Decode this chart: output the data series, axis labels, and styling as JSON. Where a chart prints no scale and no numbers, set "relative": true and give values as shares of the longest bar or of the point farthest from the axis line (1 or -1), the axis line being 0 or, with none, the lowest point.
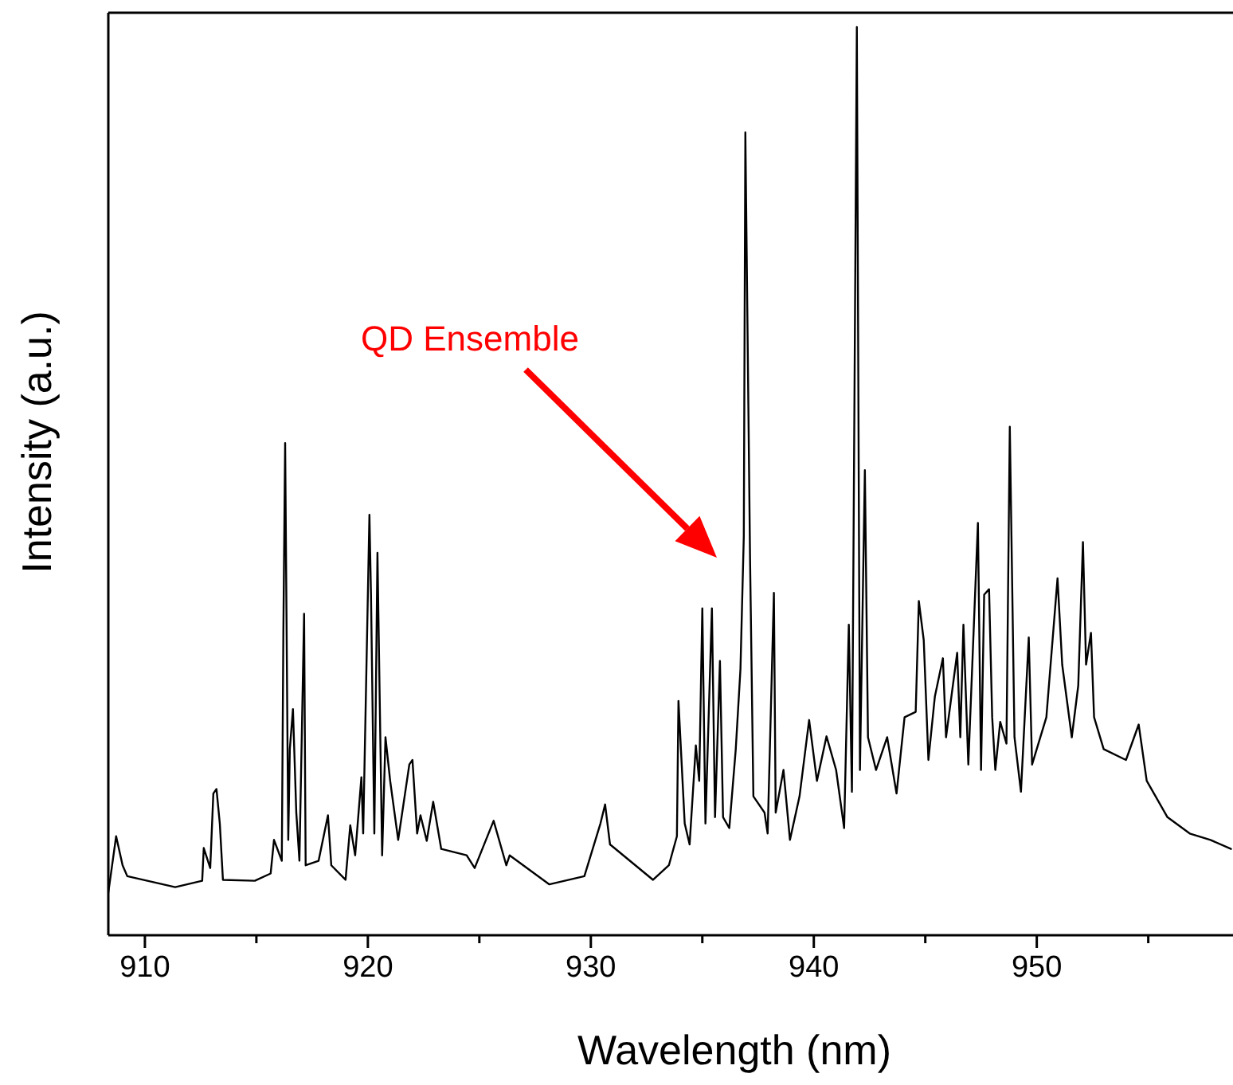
{
  "chart_data": {
    "type": "line",
    "relative": true,
    "xlabel": "Wavelength (nm)",
    "ylabel": "Intensity (a.u.)",
    "xlim": [
      908.36,
      958.8
    ],
    "xticks": [
      910,
      {
        "value": 915,
        "label": null
      },
      920,
      {
        "value": 925,
        "label": null
      },
      930,
      {
        "value": 935,
        "label": null
      },
      940,
      {
        "value": 945,
        "label": null
      },
      950,
      {
        "value": 955,
        "label": null
      }
    ],
    "annotations": [
      "QD Ensemble"
    ],
    "series": [
      {
        "color": "#000000",
        "x": [
          908.36,
          908.71,
          909.0,
          909.21,
          911.36,
          912.57,
          912.64,
          912.93,
          913.07,
          913.21,
          913.36,
          913.5,
          914.93,
          915.64,
          915.79,
          916.14,
          916.21,
          916.29,
          916.43,
          916.5,
          916.64,
          916.79,
          916.93,
          917.14,
          917.21,
          917.79,
          918.21,
          918.36,
          919.0,
          919.21,
          919.43,
          919.71,
          919.79,
          920.07,
          920.14,
          920.29,
          920.43,
          920.64,
          920.79,
          921.0,
          921.36,
          921.86,
          922.0,
          922.21,
          922.36,
          922.64,
          922.93,
          923.29,
          924.43,
          924.79,
          925.64,
          926.21,
          926.36,
          928.14,
          929.71,
          930.43,
          930.64,
          930.86,
          932.79,
          933.5,
          933.86,
          933.93,
          934.21,
          934.43,
          934.71,
          934.86,
          935.0,
          935.14,
          935.43,
          935.57,
          935.79,
          935.93,
          936.21,
          936.5,
          936.71,
          936.86,
          936.93,
          937.14,
          937.29,
          937.79,
          937.93,
          938.21,
          938.29,
          938.64,
          938.93,
          939.36,
          939.79,
          940.14,
          940.57,
          941.0,
          941.36,
          941.57,
          941.71,
          941.93,
          942.07,
          942.29,
          942.43,
          942.79,
          943.29,
          943.71,
          944.07,
          944.57,
          944.71,
          944.93,
          945.14,
          945.43,
          945.79,
          945.93,
          946.43,
          946.57,
          946.71,
          946.93,
          947.36,
          947.5,
          947.64,
          947.86,
          948.0,
          948.14,
          948.36,
          948.64,
          948.79,
          949.0,
          949.29,
          949.64,
          949.79,
          950.43,
          950.93,
          951.14,
          951.57,
          951.86,
          952.07,
          952.21,
          952.43,
          952.57,
          953.0,
          954.0,
          954.57,
          954.93,
          955.86,
          956.86,
          957.79,
          958.71
        ],
        "values": [
          0.047,
          0.109,
          0.077,
          0.065,
          0.053,
          0.06,
          0.096,
          0.074,
          0.156,
          0.161,
          0.123,
          0.061,
          0.06,
          0.068,
          0.105,
          0.082,
          0.333,
          0.542,
          0.105,
          0.205,
          0.249,
          0.135,
          0.082,
          0.354,
          0.077,
          0.082,
          0.132,
          0.077,
          0.061,
          0.121,
          0.088,
          0.174,
          0.112,
          0.463,
          0.375,
          0.112,
          0.421,
          0.088,
          0.218,
          0.17,
          0.105,
          0.188,
          0.193,
          0.112,
          0.132,
          0.104,
          0.147,
          0.095,
          0.088,
          0.074,
          0.126,
          0.077,
          0.088,
          0.056,
          0.065,
          0.123,
          0.144,
          0.1,
          0.061,
          0.077,
          0.109,
          0.258,
          0.123,
          0.1,
          0.209,
          0.17,
          0.36,
          0.123,
          0.36,
          0.13,
          0.302,
          0.13,
          0.118,
          0.205,
          0.293,
          0.439,
          0.884,
          0.416,
          0.153,
          0.135,
          0.112,
          0.377,
          0.135,
          0.182,
          0.105,
          0.153,
          0.237,
          0.17,
          0.219,
          0.182,
          0.118,
          0.342,
          0.158,
          1.0,
          0.182,
          0.512,
          0.218,
          0.182,
          0.218,
          0.156,
          0.24,
          0.246,
          0.368,
          0.325,
          0.193,
          0.263,
          0.305,
          0.218,
          0.311,
          0.218,
          0.342,
          0.188,
          0.454,
          0.182,
          0.375,
          0.381,
          0.24,
          0.182,
          0.235,
          0.211,
          0.56,
          0.218,
          0.158,
          0.328,
          0.188,
          0.24,
          0.393,
          0.298,
          0.218,
          0.275,
          0.433,
          0.298,
          0.333,
          0.24,
          0.205,
          0.193,
          0.232,
          0.17,
          0.13,
          0.112,
          0.105,
          0.095
        ]
      }
    ]
  }
}
